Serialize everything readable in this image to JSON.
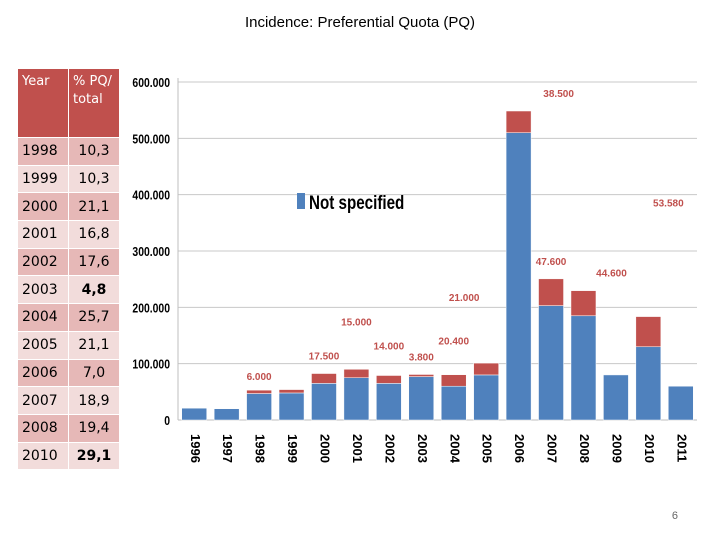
{
  "slide": {
    "title": "Incidence: Preferential Quota (PQ)",
    "page_number": "6"
  },
  "table": {
    "headers": [
      "Year",
      "% PQ/ total"
    ],
    "rows": [
      {
        "year": "1998",
        "value": "10,3",
        "bold": false
      },
      {
        "year": "1999",
        "value": "10,3",
        "bold": false
      },
      {
        "year": "2000",
        "value": "21,1",
        "bold": false
      },
      {
        "year": "2001",
        "value": "16,8",
        "bold": false
      },
      {
        "year": "2002",
        "value": "17,6",
        "bold": false
      },
      {
        "year": "2003",
        "value": "4,8",
        "bold": true
      },
      {
        "year": "2004",
        "value": "25,7",
        "bold": false
      },
      {
        "year": "2005",
        "value": "21,1",
        "bold": false
      },
      {
        "year": "2006",
        "value": "7,0",
        "bold": false
      },
      {
        "year": "2007",
        "value": "18,9",
        "bold": false
      },
      {
        "year": "2008",
        "value": "19,4",
        "bold": false
      },
      {
        "year": "2010",
        "value": "29,1",
        "bold": true
      }
    ]
  },
  "chart_data": {
    "type": "bar",
    "stacked": true,
    "categories": [
      "1996",
      "1997",
      "1998",
      "1999",
      "2000",
      "2001",
      "2002",
      "2003",
      "2004",
      "2005",
      "2006",
      "2007",
      "2008",
      "2009",
      "2010",
      "2011"
    ],
    "ylim": [
      0,
      600000
    ],
    "y_ticks": [
      "0",
      "100.000",
      "200.000",
      "300.000",
      "400.000",
      "500.000",
      "600.000"
    ],
    "y_tick_values": [
      0,
      100000,
      200000,
      300000,
      400000,
      500000,
      600000
    ],
    "grid": true,
    "legend_position": "top-left",
    "legend": "Not specified",
    "series": [
      {
        "name": "Not specified",
        "color": "#4f81bd",
        "values": [
          21000,
          20000,
          47000,
          48000,
          65000,
          75000,
          65000,
          77000,
          60000,
          80000,
          510000,
          203000,
          185000,
          80000,
          130000,
          60000
        ]
      },
      {
        "color": "#c0504d",
        "values": [
          0,
          0,
          6000,
          6000,
          17500,
          15000,
          14000,
          3800,
          20400,
          21000,
          38500,
          47600,
          44600,
          0,
          53580,
          0
        ]
      }
    ],
    "data_labels": [
      {
        "category": "1998",
        "text": "6.000"
      },
      {
        "category": "2000",
        "text": "17.500"
      },
      {
        "category": "2001",
        "text": "15.000"
      },
      {
        "category": "2002",
        "text": "14.000"
      },
      {
        "category": "2003",
        "text": "3.800"
      },
      {
        "category": "2004",
        "text": "20.400"
      },
      {
        "category": "2005",
        "text": "21.000"
      },
      {
        "category": "2006",
        "text": "38.500"
      },
      {
        "category": "2007",
        "text": "47.600"
      },
      {
        "category": "2008",
        "text": "44.600"
      },
      {
        "category": "2010",
        "text": "53.580"
      }
    ]
  }
}
